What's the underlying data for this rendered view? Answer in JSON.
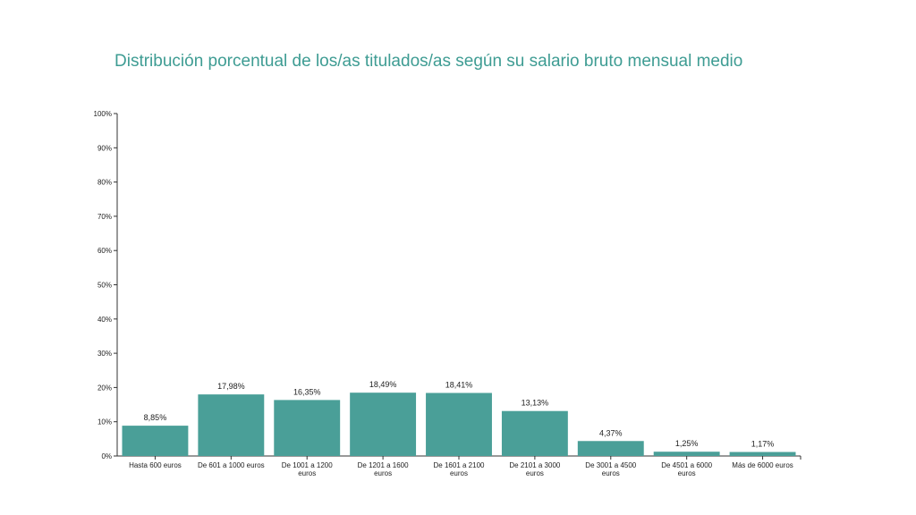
{
  "chart_data": {
    "type": "bar",
    "title": "Distribución porcentual de los/as titulados/as según su salario bruto mensual medio",
    "xlabel": "",
    "ylabel": "",
    "ylim": [
      0,
      100
    ],
    "yticks": [
      "0%",
      "10%",
      "20%",
      "30%",
      "40%",
      "50%",
      "60%",
      "70%",
      "80%",
      "90%",
      "100%"
    ],
    "categories": [
      [
        "Hasta 600 euros"
      ],
      [
        "De 601 a 1000 euros"
      ],
      [
        "De 1001 a 1200",
        "euros"
      ],
      [
        "De 1201 a 1600",
        "euros"
      ],
      [
        "De 1601 a 2100",
        "euros"
      ],
      [
        "De 2101 a 3000",
        "euros"
      ],
      [
        "De 3001 a 4500",
        "euros"
      ],
      [
        "De 4501 a 6000",
        "euros"
      ],
      [
        "Más de 6000 euros"
      ]
    ],
    "values": [
      8.85,
      17.98,
      16.35,
      18.49,
      18.41,
      13.13,
      4.37,
      1.25,
      1.17
    ],
    "data_labels": [
      "8,85%",
      "17,98%",
      "16,35%",
      "18,49%",
      "18,41%",
      "13,13%",
      "4,37%",
      "1,25%",
      "1,17%"
    ],
    "bar_color": "#4a9f98",
    "grid": false,
    "legend": "none"
  }
}
